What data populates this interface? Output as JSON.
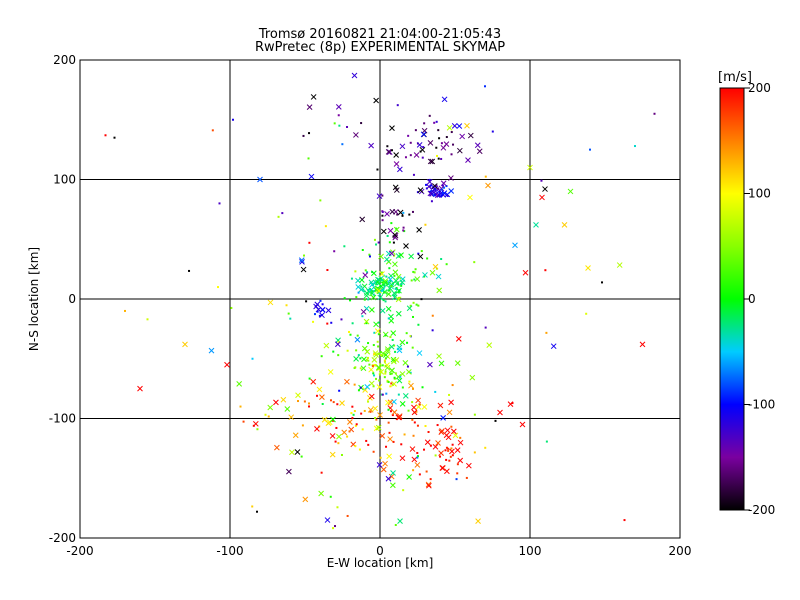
{
  "chart_data": {
    "type": "scatter",
    "title": "Tromsø 20160821 21:04:00-21:05:43",
    "subtitle": "RwPretec (8p) EXPERIMENTAL SKYMAP",
    "xlabel": "E-W location [km]",
    "ylabel": "N-S location [km]",
    "xlim": [
      -200,
      200
    ],
    "ylim": [
      -200,
      200
    ],
    "xticks": [
      -200,
      -100,
      0,
      100,
      200
    ],
    "yticks": [
      -200,
      -100,
      0,
      100,
      200
    ],
    "grid": true,
    "colorbar": {
      "label": "[m/s]",
      "range": [
        -200,
        200
      ],
      "ticks": [
        200,
        100,
        0,
        -100,
        -200
      ]
    },
    "markers": [
      "x",
      "dot"
    ],
    "clusters": [
      {
        "x": 38,
        "y": 92,
        "sx": 5,
        "sy": 4,
        "n": 45,
        "v": -115,
        "vs": 15
      },
      {
        "x": 30,
        "y": 135,
        "sx": 18,
        "sy": 12,
        "n": 40,
        "v": -165,
        "vs": 25
      },
      {
        "x": 5,
        "y": 130,
        "sx": 30,
        "sy": 25,
        "n": 25,
        "v": -150,
        "vs": 40
      },
      {
        "x": 0,
        "y": 10,
        "sx": 8,
        "sy": 6,
        "n": 90,
        "v": -20,
        "vs": 15
      },
      {
        "x": 10,
        "y": 20,
        "sx": 15,
        "sy": 20,
        "n": 60,
        "v": 10,
        "vs": 30
      },
      {
        "x": -38,
        "y": -10,
        "sx": 3,
        "sy": 4,
        "n": 14,
        "v": -105,
        "vs": 10
      },
      {
        "x": 0,
        "y": -55,
        "sx": 8,
        "sy": 9,
        "n": 70,
        "v": 60,
        "vs": 30
      },
      {
        "x": 0,
        "y": -40,
        "sx": 15,
        "sy": 25,
        "n": 60,
        "v": 20,
        "vs": 40
      },
      {
        "x": -30,
        "y": -95,
        "sx": 25,
        "sy": 14,
        "n": 60,
        "v": 150,
        "vs": 60
      },
      {
        "x": 20,
        "y": -115,
        "sx": 25,
        "sy": 20,
        "n": 70,
        "v": 180,
        "vs": 50
      },
      {
        "x": 45,
        "y": -130,
        "sx": 10,
        "sy": 12,
        "n": 30,
        "v": 200,
        "vs": 20
      },
      {
        "x": 10,
        "y": 60,
        "sx": 10,
        "sy": 20,
        "n": 30,
        "v": -180,
        "vs": 30
      },
      {
        "x": 0,
        "y": -100,
        "sx": 40,
        "sy": 50,
        "n": 50,
        "v": 60,
        "vs": 90
      },
      {
        "x": 0,
        "y": 0,
        "sx": 70,
        "sy": 90,
        "n": 90,
        "v": 0,
        "vs": 130
      }
    ],
    "points": [
      {
        "x": -183,
        "y": 137,
        "v": 200,
        "m": "dot"
      },
      {
        "x": -177,
        "y": 135,
        "v": -200,
        "m": "dot"
      },
      {
        "x": -160,
        "y": -75,
        "v": 200,
        "m": "x"
      },
      {
        "x": -130,
        "y": -38,
        "v": 120,
        "m": "x"
      },
      {
        "x": -102,
        "y": -55,
        "v": 200,
        "m": "x"
      },
      {
        "x": -98,
        "y": 150,
        "v": -110,
        "m": "dot"
      },
      {
        "x": -80,
        "y": 100,
        "v": -80,
        "m": "x"
      },
      {
        "x": 175,
        "y": -38,
        "v": 200,
        "m": "x"
      },
      {
        "x": 183,
        "y": 155,
        "v": -160,
        "m": "dot"
      },
      {
        "x": 163,
        "y": -185,
        "v": 200,
        "m": "dot"
      },
      {
        "x": 110,
        "y": 92,
        "v": -200,
        "m": "x"
      },
      {
        "x": 127,
        "y": 90,
        "v": 30,
        "m": "x"
      },
      {
        "x": 123,
        "y": 62,
        "v": 120,
        "m": "x"
      },
      {
        "x": 104,
        "y": 62,
        "v": -30,
        "m": "x"
      },
      {
        "x": 100,
        "y": 110,
        "v": 80,
        "m": "x"
      },
      {
        "x": 90,
        "y": 45,
        "v": -60,
        "m": "x"
      },
      {
        "x": 97,
        "y": 22,
        "v": 200,
        "m": "x"
      },
      {
        "x": 108,
        "y": 85,
        "v": 200,
        "m": "x"
      },
      {
        "x": 80,
        "y": -95,
        "v": 200,
        "m": "x"
      },
      {
        "x": 77,
        "y": -102,
        "v": -200,
        "m": "dot"
      },
      {
        "x": 87,
        "y": -88,
        "v": 200,
        "m": "x"
      },
      {
        "x": 95,
        "y": -105,
        "v": 200,
        "m": "x"
      },
      {
        "x": -35,
        "y": -185,
        "v": -110,
        "m": "x"
      },
      {
        "x": -30,
        "y": -190,
        "v": -160,
        "m": "dot"
      },
      {
        "x": -82,
        "y": -178,
        "v": -200,
        "m": "dot"
      },
      {
        "x": -55,
        "y": -128,
        "v": -200,
        "m": "x"
      },
      {
        "x": -17,
        "y": 187,
        "v": -120,
        "m": "x"
      },
      {
        "x": 70,
        "y": 178,
        "v": -90,
        "m": "dot"
      },
      {
        "x": 140,
        "y": 125,
        "v": -80,
        "m": "dot"
      },
      {
        "x": 170,
        "y": 128,
        "v": -40,
        "m": "dot"
      },
      {
        "x": -107,
        "y": 80,
        "v": -130,
        "m": "dot"
      },
      {
        "x": -170,
        "y": -10,
        "v": 130,
        "m": "dot"
      },
      {
        "x": -155,
        "y": -17,
        "v": 80,
        "m": "dot"
      },
      {
        "x": -108,
        "y": 10,
        "v": 100,
        "m": "dot"
      },
      {
        "x": -93,
        "y": -90,
        "v": 130,
        "m": "dot"
      },
      {
        "x": -85,
        "y": -50,
        "v": -50,
        "m": "dot"
      },
      {
        "x": 60,
        "y": 85,
        "v": 100,
        "m": "x"
      },
      {
        "x": 72,
        "y": 95,
        "v": 140,
        "m": "x"
      },
      {
        "x": 58,
        "y": 145,
        "v": 120,
        "m": "x"
      },
      {
        "x": 37,
        "y": 27,
        "v": 120,
        "m": "x"
      },
      {
        "x": 35,
        "y": 22,
        "v": 40,
        "m": "x"
      }
    ]
  }
}
